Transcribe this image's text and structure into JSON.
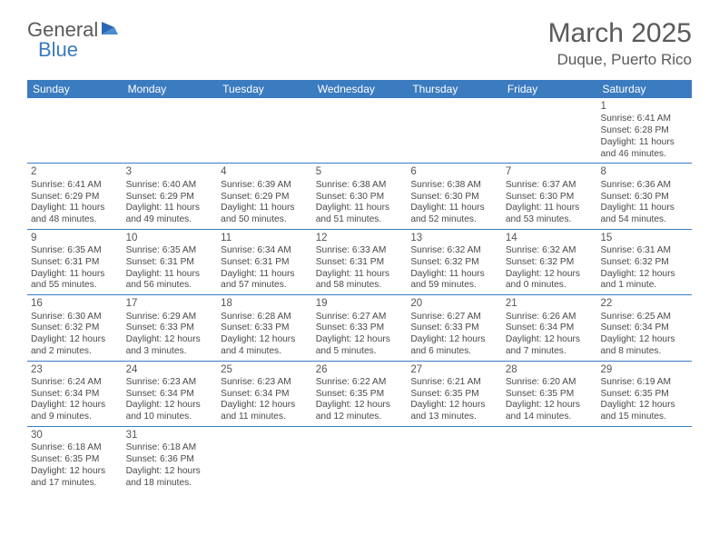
{
  "logo": {
    "text1": "General",
    "text2": "Blue"
  },
  "title": "March 2025",
  "location": "Duque, Puerto Rico",
  "header_bg": "#3b7bbf",
  "weekdays": [
    "Sunday",
    "Monday",
    "Tuesday",
    "Wednesday",
    "Thursday",
    "Friday",
    "Saturday"
  ],
  "first_day_index": 6,
  "num_weeks": 6,
  "days": [
    {
      "n": 1,
      "sr": "6:41 AM",
      "ss": "6:28 PM",
      "dl": "11 hours and 46 minutes."
    },
    {
      "n": 2,
      "sr": "6:41 AM",
      "ss": "6:29 PM",
      "dl": "11 hours and 48 minutes."
    },
    {
      "n": 3,
      "sr": "6:40 AM",
      "ss": "6:29 PM",
      "dl": "11 hours and 49 minutes."
    },
    {
      "n": 4,
      "sr": "6:39 AM",
      "ss": "6:29 PM",
      "dl": "11 hours and 50 minutes."
    },
    {
      "n": 5,
      "sr": "6:38 AM",
      "ss": "6:30 PM",
      "dl": "11 hours and 51 minutes."
    },
    {
      "n": 6,
      "sr": "6:38 AM",
      "ss": "6:30 PM",
      "dl": "11 hours and 52 minutes."
    },
    {
      "n": 7,
      "sr": "6:37 AM",
      "ss": "6:30 PM",
      "dl": "11 hours and 53 minutes."
    },
    {
      "n": 8,
      "sr": "6:36 AM",
      "ss": "6:30 PM",
      "dl": "11 hours and 54 minutes."
    },
    {
      "n": 9,
      "sr": "6:35 AM",
      "ss": "6:31 PM",
      "dl": "11 hours and 55 minutes."
    },
    {
      "n": 10,
      "sr": "6:35 AM",
      "ss": "6:31 PM",
      "dl": "11 hours and 56 minutes."
    },
    {
      "n": 11,
      "sr": "6:34 AM",
      "ss": "6:31 PM",
      "dl": "11 hours and 57 minutes."
    },
    {
      "n": 12,
      "sr": "6:33 AM",
      "ss": "6:31 PM",
      "dl": "11 hours and 58 minutes."
    },
    {
      "n": 13,
      "sr": "6:32 AM",
      "ss": "6:32 PM",
      "dl": "11 hours and 59 minutes."
    },
    {
      "n": 14,
      "sr": "6:32 AM",
      "ss": "6:32 PM",
      "dl": "12 hours and 0 minutes."
    },
    {
      "n": 15,
      "sr": "6:31 AM",
      "ss": "6:32 PM",
      "dl": "12 hours and 1 minute."
    },
    {
      "n": 16,
      "sr": "6:30 AM",
      "ss": "6:32 PM",
      "dl": "12 hours and 2 minutes."
    },
    {
      "n": 17,
      "sr": "6:29 AM",
      "ss": "6:33 PM",
      "dl": "12 hours and 3 minutes."
    },
    {
      "n": 18,
      "sr": "6:28 AM",
      "ss": "6:33 PM",
      "dl": "12 hours and 4 minutes."
    },
    {
      "n": 19,
      "sr": "6:27 AM",
      "ss": "6:33 PM",
      "dl": "12 hours and 5 minutes."
    },
    {
      "n": 20,
      "sr": "6:27 AM",
      "ss": "6:33 PM",
      "dl": "12 hours and 6 minutes."
    },
    {
      "n": 21,
      "sr": "6:26 AM",
      "ss": "6:34 PM",
      "dl": "12 hours and 7 minutes."
    },
    {
      "n": 22,
      "sr": "6:25 AM",
      "ss": "6:34 PM",
      "dl": "12 hours and 8 minutes."
    },
    {
      "n": 23,
      "sr": "6:24 AM",
      "ss": "6:34 PM",
      "dl": "12 hours and 9 minutes."
    },
    {
      "n": 24,
      "sr": "6:23 AM",
      "ss": "6:34 PM",
      "dl": "12 hours and 10 minutes."
    },
    {
      "n": 25,
      "sr": "6:23 AM",
      "ss": "6:34 PM",
      "dl": "12 hours and 11 minutes."
    },
    {
      "n": 26,
      "sr": "6:22 AM",
      "ss": "6:35 PM",
      "dl": "12 hours and 12 minutes."
    },
    {
      "n": 27,
      "sr": "6:21 AM",
      "ss": "6:35 PM",
      "dl": "12 hours and 13 minutes."
    },
    {
      "n": 28,
      "sr": "6:20 AM",
      "ss": "6:35 PM",
      "dl": "12 hours and 14 minutes."
    },
    {
      "n": 29,
      "sr": "6:19 AM",
      "ss": "6:35 PM",
      "dl": "12 hours and 15 minutes."
    },
    {
      "n": 30,
      "sr": "6:18 AM",
      "ss": "6:35 PM",
      "dl": "12 hours and 17 minutes."
    },
    {
      "n": 31,
      "sr": "6:18 AM",
      "ss": "6:36 PM",
      "dl": "12 hours and 18 minutes."
    }
  ],
  "labels": {
    "sunrise": "Sunrise:",
    "sunset": "Sunset:",
    "daylight": "Daylight:"
  }
}
